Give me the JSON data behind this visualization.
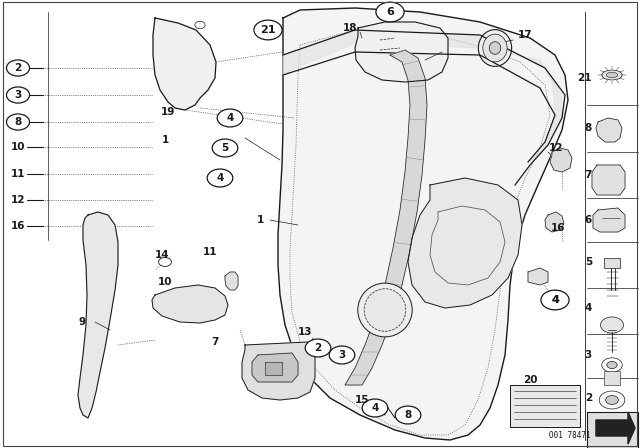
{
  "bg_color": "#ffffff",
  "image_id": "O01 78471",
  "line_color": "#1a1a1a",
  "dot_color": "#555555"
}
